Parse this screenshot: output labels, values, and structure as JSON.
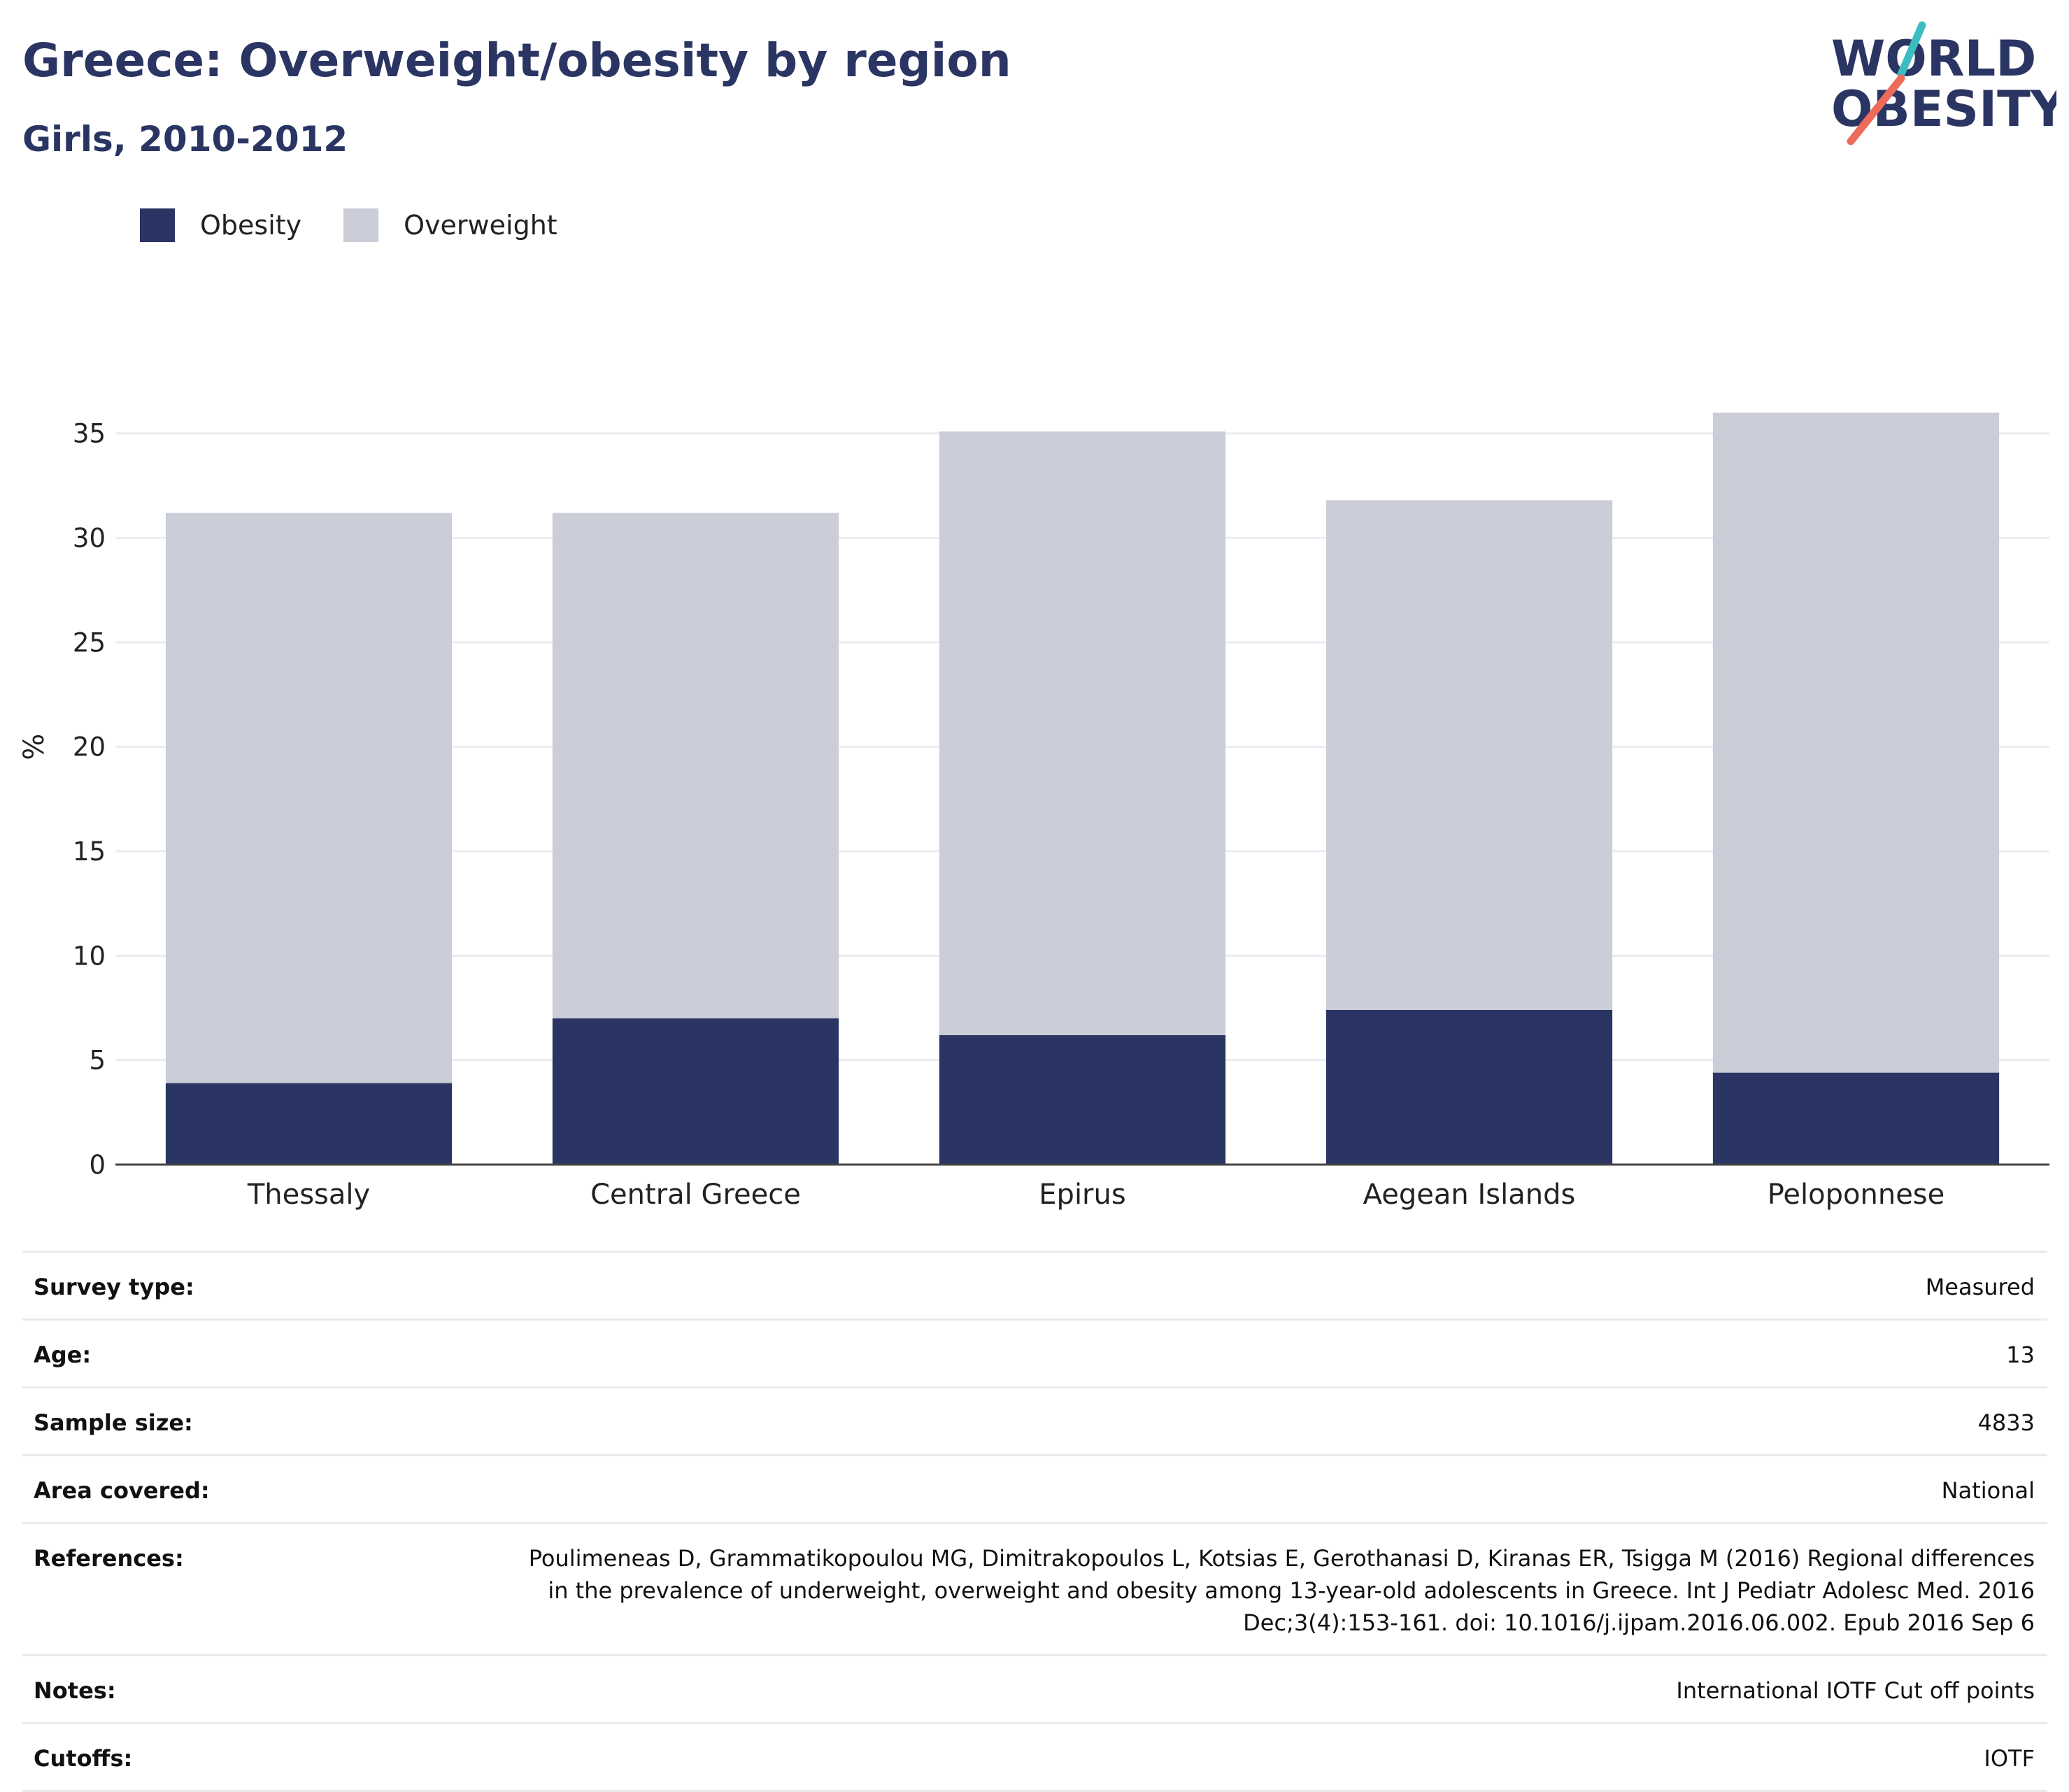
{
  "title": "Greece: Overweight/obesity by region",
  "subtitle": "Girls, 2010-2012",
  "logo": {
    "line1": "WORLD",
    "line2": "OBESITY"
  },
  "colors": {
    "obesity": "#2a3563",
    "overweight": "#cbcdd8",
    "title": "#2a3563",
    "logo_teal": "#3bbdc2",
    "logo_coral": "#ee6a5b"
  },
  "chart_data": {
    "type": "bar",
    "stacked": true,
    "categories": [
      "Thessaly",
      "Central Greece",
      "Epirus",
      "Aegean Islands",
      "Peloponnese"
    ],
    "series": [
      {
        "name": "Obesity",
        "values": [
          3.9,
          7.0,
          6.2,
          7.4,
          4.4
        ]
      },
      {
        "name": "Overweight",
        "values": [
          27.3,
          24.2,
          28.9,
          24.4,
          31.6
        ]
      }
    ],
    "totals": [
      31.2,
      31.2,
      35.1,
      31.8,
      36.0
    ],
    "ylabel": "%",
    "ylim": [
      0,
      37
    ],
    "yticks": [
      "0",
      "5",
      "10",
      "15",
      "20",
      "25",
      "30",
      "35"
    ],
    "legend_position": "top-left",
    "grid": true
  },
  "info": [
    {
      "label": "Survey type:",
      "value": "Measured"
    },
    {
      "label": "Age:",
      "value": "13"
    },
    {
      "label": "Sample size:",
      "value": "4833"
    },
    {
      "label": "Area covered:",
      "value": "National"
    },
    {
      "label": "References:",
      "value": [
        "Poulimeneas D, Grammatikopoulou MG, Dimitrakopoulos L, Kotsias E, Gerothanasi D, Kiranas ER, Tsigga M (2016) Regional differences",
        "in the prevalence of underweight, overweight and obesity among 13-year-old adolescents in Greece. Int J Pediatr Adolesc Med. 2016",
        "Dec;3(4):153-161. doi: 10.1016/j.ijpam.2016.06.002. Epub 2016 Sep 6"
      ]
    },
    {
      "label": "Notes:",
      "value": "International IOTF Cut off points"
    },
    {
      "label": "Cutoffs:",
      "value": "IOTF"
    }
  ]
}
